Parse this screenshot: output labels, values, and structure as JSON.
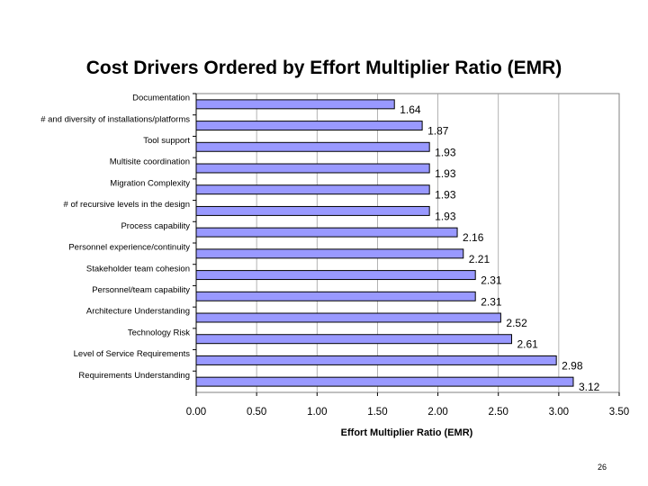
{
  "slide": {
    "page_number": "26"
  },
  "chart_data": {
    "type": "bar",
    "orientation": "horizontal",
    "title": "Cost Drivers Ordered by Effort Multiplier Ratio (EMR)",
    "xlabel": "Effort Multiplier Ratio (EMR)",
    "ylabel": "",
    "xlim": [
      0,
      3.5
    ],
    "xticks": [
      "0.00",
      "0.50",
      "1.00",
      "1.50",
      "2.00",
      "2.50",
      "3.00",
      "3.50"
    ],
    "grid": true,
    "legend": "none",
    "bar_color": "#9999ff",
    "categories": [
      "Documentation",
      "# and diversity of installations/platforms",
      "Tool support",
      "Multisite coordination",
      "Migration Complexity",
      "# of recursive levels in the design",
      "Process capability",
      "Personnel experience/continuity",
      "Stakeholder team cohesion",
      "Personnel/team capability",
      "Architecture Understanding",
      "Technology Risk",
      "Level of Service Requirements",
      "Requirements Understanding"
    ],
    "values": [
      1.64,
      1.87,
      1.93,
      1.93,
      1.93,
      1.93,
      2.16,
      2.21,
      2.31,
      2.31,
      2.52,
      2.61,
      2.98,
      3.12
    ],
    "value_labels": [
      "1.64",
      "1.87",
      "1.93",
      "1.93",
      "1.93",
      "1.93",
      "2.16",
      "2.21",
      "2.31",
      "2.31",
      "2.52",
      "2.61",
      "2.98",
      "3.12"
    ]
  }
}
